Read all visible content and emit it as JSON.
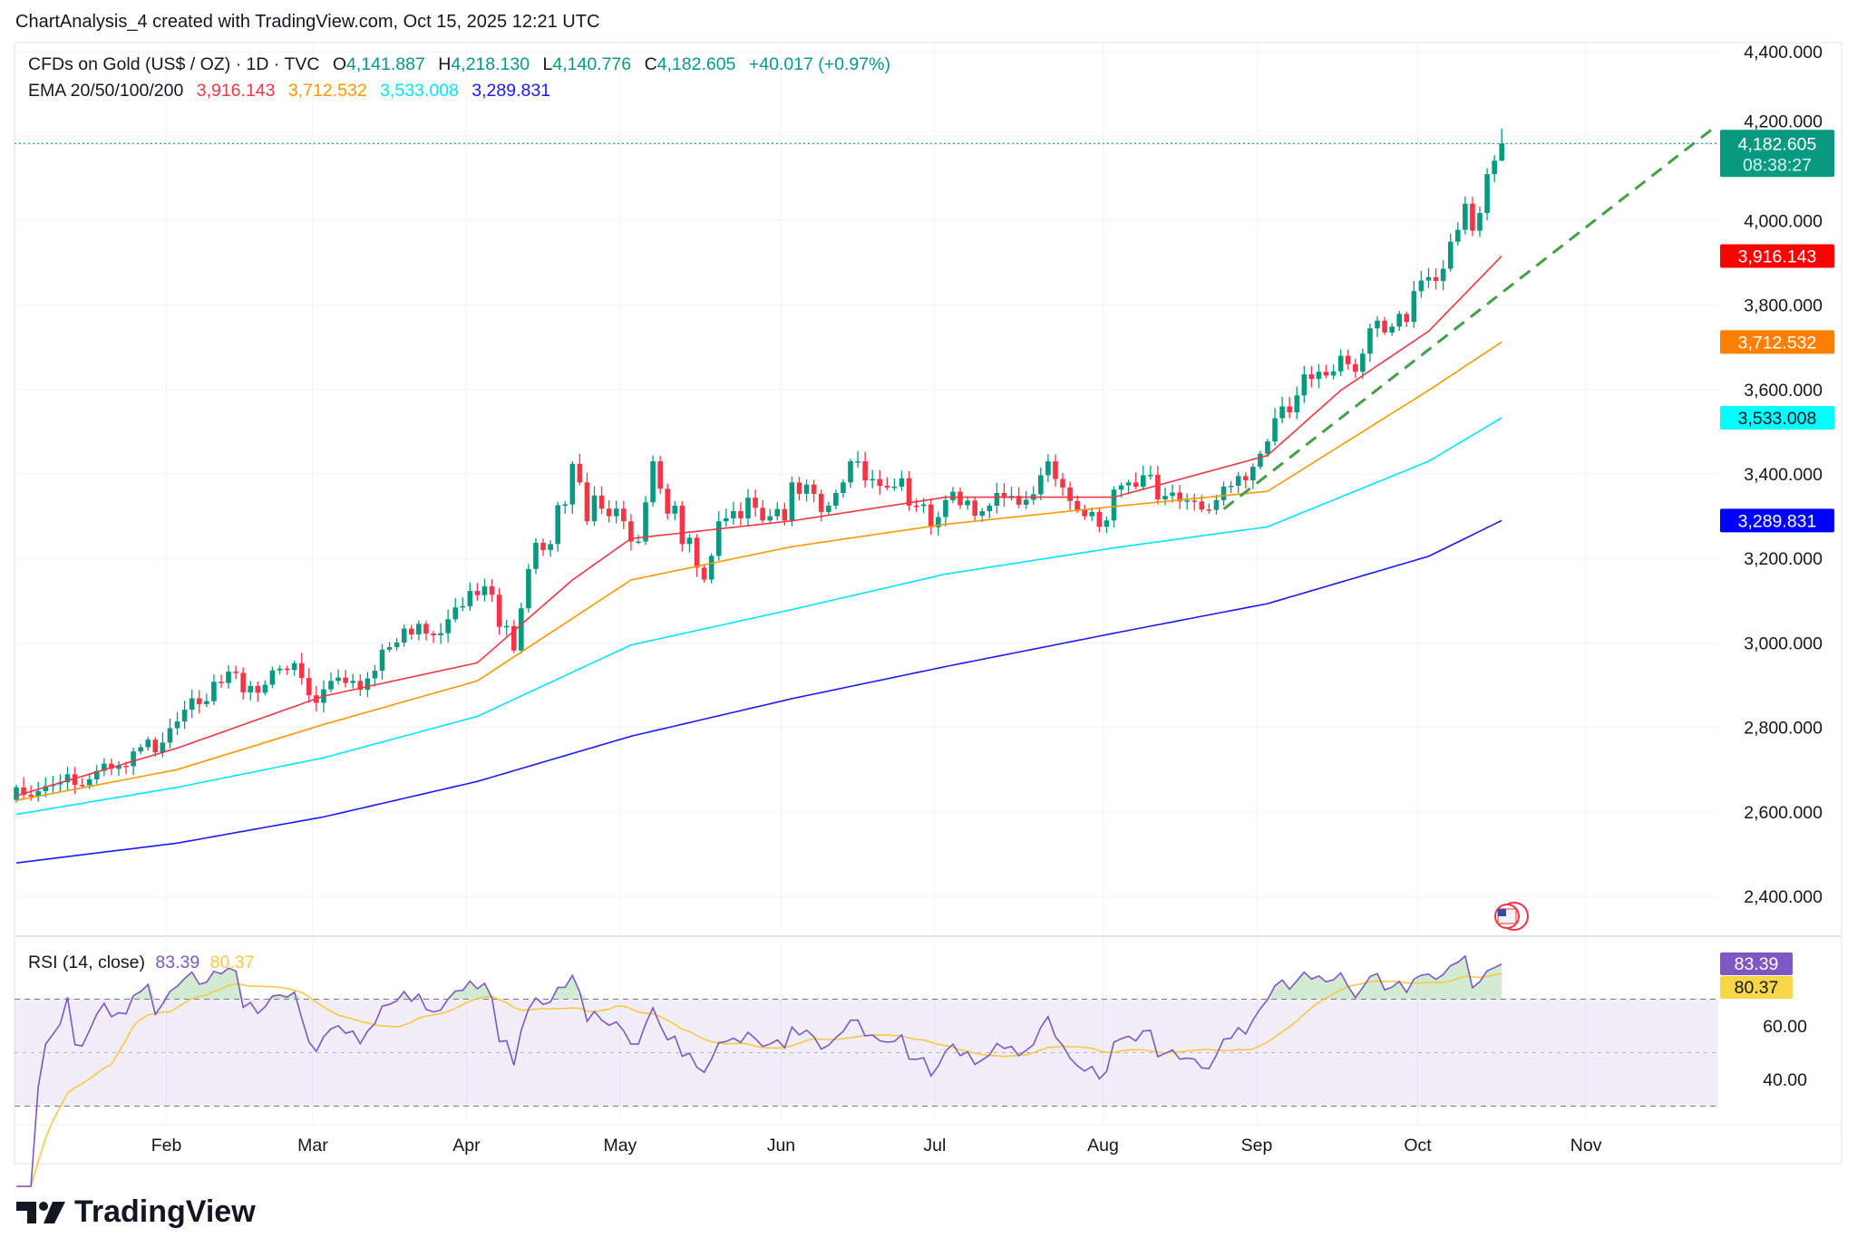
{
  "header": {
    "title": "ChartAnalysis_4 created with TradingView.com, Oct 15, 2025 12:21 UTC"
  },
  "legend": {
    "symbol": "CFDs on Gold (US$ / OZ) · 1D · TVC",
    "open_label": "O",
    "open": "4,141.887",
    "high_label": "H",
    "high": "4,218.130",
    "low_label": "L",
    "low": "4,140.776",
    "close_label": "C",
    "close": "4,182.605",
    "change": "+40.017 (+0.97%)",
    "ema_label": "EMA 20/50/100/200",
    "ema_values": [
      "3,916.143",
      "3,712.532",
      "3,533.008",
      "3,289.831"
    ]
  },
  "rsi_legend": {
    "label": "RSI (14, close)",
    "rsi": "83.39",
    "ma": "80.37"
  },
  "price_tag": {
    "price": "4,182.605",
    "countdown": "08:38:27"
  },
  "ema_tags": [
    "3,916.143",
    "3,712.532",
    "3,533.008",
    "3,289.831"
  ],
  "rsi_tags": [
    "83.39",
    "80.37"
  ],
  "logo": {
    "text": "TradingView"
  },
  "colors": {
    "up": "#089981",
    "down": "#f23645",
    "ema20": "#f23645",
    "ema50": "#ff9800",
    "ema100": "#00e5ff",
    "ema200": "#1a1aff",
    "rsi": "#7e57c2",
    "rsi_ma": "#f9c846",
    "trendline": "#43a047"
  },
  "chart_data": [
    {
      "type": "candlestick",
      "title": "CFDs on Gold (US$ / OZ) · 1D · TVC",
      "yticks": [
        "2,400.000",
        "2,600.000",
        "2,800.000",
        "3,000.000",
        "3,200.000",
        "3,400.000",
        "3,600.000",
        "3,800.000",
        "4,000.000",
        "4,200.000",
        "4,400.000"
      ],
      "ylim": [
        2330,
        4450
      ],
      "xticks": [
        {
          "label": "Feb",
          "date": "2025-02-03"
        },
        {
          "label": "Mar",
          "date": "2025-03-03"
        },
        {
          "label": "Apr",
          "date": "2025-04-01"
        },
        {
          "label": "May",
          "date": "2025-05-01"
        },
        {
          "label": "Jun",
          "date": "2025-06-02"
        },
        {
          "label": "Jul",
          "date": "2025-07-01"
        },
        {
          "label": "Aug",
          "date": "2025-08-01"
        },
        {
          "label": "Sep",
          "date": "2025-09-01"
        },
        {
          "label": "Oct",
          "date": "2025-10-01"
        },
        {
          "label": "Nov",
          "date": "2025-11-03"
        }
      ],
      "grid": true,
      "first_open": 2628,
      "last_candle": {
        "open": 4141.887,
        "high": 4218.13,
        "low": 4140.776,
        "close": 4182.605
      },
      "closes_by_month": {
        "2025-01": [
          2658,
          2640,
          2636,
          2649,
          2661,
          2665,
          2670,
          2689,
          2664,
          2663,
          2677,
          2697,
          2714,
          2702,
          2709,
          2708,
          2743,
          2753,
          2771,
          2741,
          2764,
          2798
        ],
        "2025-02": [
          2814,
          2842,
          2869,
          2855,
          2862,
          2908,
          2905,
          2932,
          2929,
          2883,
          2898,
          2882,
          2901,
          2935,
          2939,
          2936,
          2952,
          2917,
          2876,
          2858
        ],
        "2025-03": [
          2890,
          2910,
          2918,
          2905,
          2910,
          2889,
          2916,
          2934,
          2984,
          2990,
          3001,
          3034,
          3020,
          3045,
          3022,
          3018,
          3023,
          3056,
          3084,
          3087,
          3123
        ],
        "2025-04": [
          3113,
          3134,
          3114,
          3038,
          3040,
          2982,
          3082,
          3175,
          3237,
          3220,
          3234,
          3326,
          3328,
          3424,
          3380,
          3288,
          3349,
          3318,
          3300,
          3318,
          3288
        ],
        "2025-05": [
          3240,
          3240,
          3333,
          3430,
          3365,
          3306,
          3325,
          3234,
          3249,
          3178,
          3150,
          3206,
          3288,
          3295,
          3312,
          3295,
          3344,
          3320,
          3290,
          3300,
          3317,
          3290
        ],
        "2025-06": [
          3380,
          3353,
          3375,
          3353,
          3310,
          3325,
          3355,
          3380,
          3430,
          3430,
          3385,
          3388,
          3372,
          3368,
          3370,
          3390,
          3325,
          3324,
          3328,
          3274,
          3298
        ],
        "2025-07": [
          3338,
          3358,
          3326,
          3337,
          3301,
          3312,
          3325,
          3355,
          3343,
          3348,
          3327,
          3339,
          3352,
          3397,
          3430,
          3388,
          3368,
          3336,
          3315,
          3300,
          3310,
          3275,
          3290
        ],
        "2025-08": [
          3363,
          3373,
          3380,
          3370,
          3397,
          3398,
          3340,
          3348,
          3356,
          3335,
          3337,
          3335,
          3316,
          3315,
          3338,
          3370,
          3372,
          3395,
          3385,
          3417,
          3448
        ],
        "2025-09": [
          3477,
          3532,
          3560,
          3546,
          3586,
          3636,
          3625,
          3642,
          3633,
          3643,
          3680,
          3660,
          3642,
          3685,
          3745,
          3763,
          3735,
          3749,
          3779,
          3760,
          3833,
          3858
        ],
        "2025-10": [
          3866,
          3857,
          3886,
          3950,
          3978,
          4040,
          3976,
          4018,
          4110,
          4142,
          4182.605
        ]
      },
      "ema": {
        "ema20": [
          [
            "2025-01-02",
            2638
          ],
          [
            "2025-02-03",
            2751
          ],
          [
            "2025-03-03",
            2874
          ],
          [
            "2025-04-01",
            2953
          ],
          [
            "2025-04-21",
            3149
          ],
          [
            "2025-05-01",
            3247
          ],
          [
            "2025-06-02",
            3289
          ],
          [
            "2025-07-01",
            3345
          ],
          [
            "2025-08-01",
            3345
          ],
          [
            "2025-09-01",
            3444
          ],
          [
            "2025-09-15",
            3598
          ],
          [
            "2025-10-01",
            3738
          ],
          [
            "2025-10-15",
            3916.143
          ]
        ],
        "ema50": [
          [
            "2025-01-02",
            2627
          ],
          [
            "2025-02-03",
            2700
          ],
          [
            "2025-03-03",
            2807
          ],
          [
            "2025-04-01",
            2910
          ],
          [
            "2025-05-01",
            3149
          ],
          [
            "2025-06-02",
            3228
          ],
          [
            "2025-07-01",
            3281
          ],
          [
            "2025-08-01",
            3323
          ],
          [
            "2025-09-01",
            3359
          ],
          [
            "2025-10-01",
            3598
          ],
          [
            "2025-10-15",
            3712.532
          ]
        ],
        "ema100": [
          [
            "2025-01-02",
            2594
          ],
          [
            "2025-02-03",
            2658
          ],
          [
            "2025-03-03",
            2728
          ],
          [
            "2025-04-01",
            2826
          ],
          [
            "2025-05-01",
            2995
          ],
          [
            "2025-06-02",
            3079
          ],
          [
            "2025-07-01",
            3163
          ],
          [
            "2025-08-01",
            3225
          ],
          [
            "2025-09-01",
            3275
          ],
          [
            "2025-10-01",
            3430
          ],
          [
            "2025-10-15",
            3533.008
          ]
        ],
        "ema200": [
          [
            "2025-01-02",
            2479
          ],
          [
            "2025-02-03",
            2526
          ],
          [
            "2025-03-03",
            2588
          ],
          [
            "2025-04-01",
            2672
          ],
          [
            "2025-05-01",
            2779
          ],
          [
            "2025-06-02",
            2868
          ],
          [
            "2025-07-01",
            2944
          ],
          [
            "2025-08-01",
            3023
          ],
          [
            "2025-09-01",
            3093
          ],
          [
            "2025-10-01",
            3205
          ],
          [
            "2025-10-15",
            3289.831
          ]
        ]
      },
      "trendline": [
        [
          "2025-08-22",
          3317
        ],
        [
          "2025-11-25",
          4220
        ]
      ]
    },
    {
      "type": "line",
      "title": "RSI (14, close)",
      "yticks": [
        "40.00",
        "60.00"
      ],
      "bands": [
        30,
        70
      ],
      "ylim": [
        22,
        100
      ],
      "latest": {
        "rsi": 83.39,
        "ma": 80.37
      }
    }
  ]
}
